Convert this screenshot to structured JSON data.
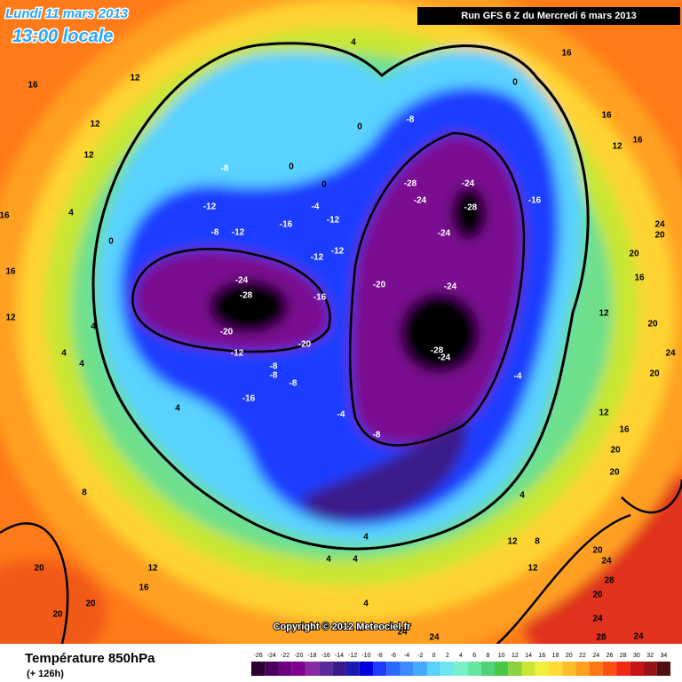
{
  "header": {
    "date": "Lundi 11 mars 2013",
    "time": "13:00 locale",
    "run": "Run GFS 6 Z du Mercredi 6 mars 2013"
  },
  "copyright": "Copyright © 2012 Meteociel.fr",
  "footer": {
    "title": "Température 850hPa",
    "lead": "(+ 126h)"
  },
  "map": {
    "contour_labels": [
      16,
      12,
      12,
      12,
      16,
      4,
      0,
      16,
      12,
      4,
      4,
      4,
      4,
      8,
      12,
      16,
      20,
      20,
      20,
      4,
      0,
      0,
      0,
      -8,
      -12,
      -8,
      -12,
      -16,
      -4,
      -12,
      -12,
      -12,
      -24,
      -28,
      -16,
      -20,
      -20,
      -12,
      -8,
      -8,
      -8,
      -16,
      -4,
      -8,
      -20,
      -24,
      -28,
      -24,
      -4,
      -8,
      -28,
      -24,
      -24,
      -28,
      -24,
      -16,
      0,
      16,
      16,
      16,
      12,
      24,
      20,
      20,
      16,
      12,
      20,
      24,
      20,
      12,
      16,
      20,
      20,
      8,
      12,
      12,
      4,
      4,
      4,
      4,
      4,
      20,
      24,
      24,
      28,
      20,
      24,
      28,
      24,
      24
    ]
  },
  "scale": {
    "labels": [
      -26,
      -24,
      -22,
      -20,
      -18,
      -16,
      -14,
      -12,
      -10,
      -8,
      -6,
      -4,
      -2,
      0,
      2,
      4,
      6,
      8,
      10,
      12,
      14,
      16,
      18,
      20,
      22,
      24,
      26,
      28,
      30,
      32,
      34
    ],
    "colors": [
      "#2a0030",
      "#4b0060",
      "#6a0080",
      "#800090",
      "#8a2aa0",
      "#5a2a9a",
      "#3a1a8a",
      "#1a1ab0",
      "#0000e0",
      "#1e3cff",
      "#2a6aff",
      "#3c8cff",
      "#46aaff",
      "#5ad2ff",
      "#6ee6f0",
      "#78f0c8",
      "#64e6a0",
      "#50d278",
      "#46c846",
      "#8cd23c",
      "#c8e632",
      "#f0f03c",
      "#ffdc32",
      "#ffbe28",
      "#ffa01e",
      "#ff7814",
      "#ff5014",
      "#f02814",
      "#c81414",
      "#961414",
      "#501010"
    ]
  }
}
